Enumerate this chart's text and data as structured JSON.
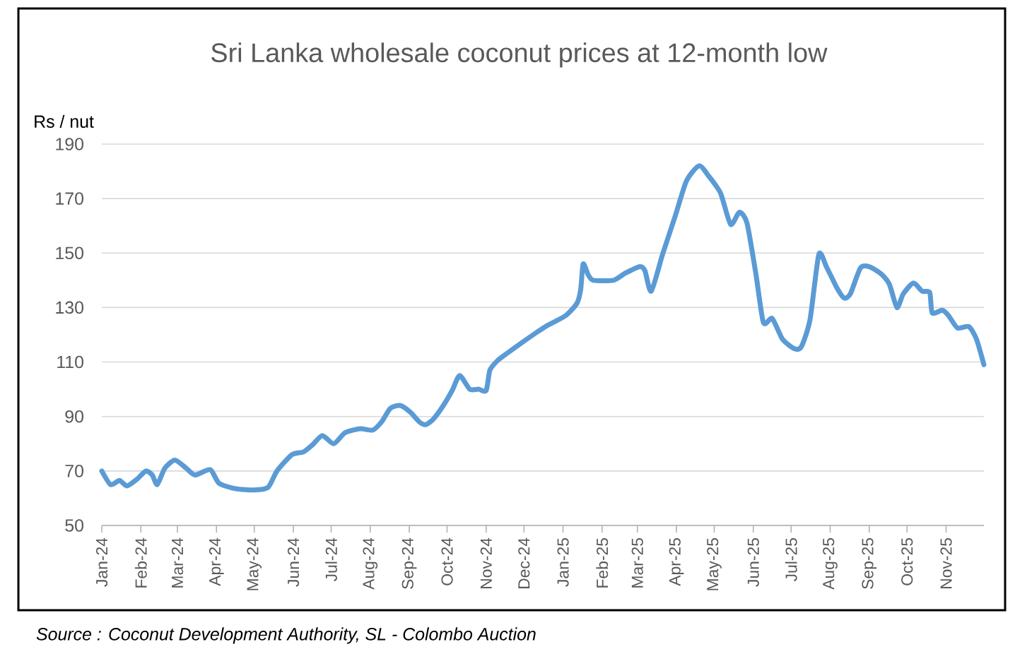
{
  "chart_data": {
    "type": "line",
    "title": "Sri Lanka wholesale coconut prices at 12-month low",
    "ylabel": "Rs / nut",
    "annotations": [
      "Source : Coconut Development Authority, SL - Colombo Auction"
    ],
    "x": [
      "2024-01-01",
      "2024-01-08",
      "2024-01-15",
      "2024-01-21",
      "2024-01-29",
      "2024-02-05",
      "2024-02-10",
      "2024-02-14",
      "2024-02-20",
      "2024-02-28",
      "2024-03-08",
      "2024-03-15",
      "2024-03-27",
      "2024-04-03",
      "2024-04-16",
      "2024-05-01",
      "2024-05-12",
      "2024-05-19",
      "2024-05-31",
      "2024-06-09",
      "2024-06-16",
      "2024-06-24",
      "2024-07-03",
      "2024-07-12",
      "2024-07-24",
      "2024-08-03",
      "2024-08-10",
      "2024-08-17",
      "2024-08-25",
      "2024-09-02",
      "2024-09-09",
      "2024-09-14",
      "2024-09-20",
      "2024-09-28",
      "2024-10-05",
      "2024-10-11",
      "2024-10-19",
      "2024-10-26",
      "2024-11-01",
      "2024-11-04",
      "2024-11-10",
      "2024-11-17",
      "2024-11-29",
      "2024-12-18",
      "2025-01-03",
      "2025-01-12",
      "2025-01-15",
      "2025-01-17",
      "2025-01-21",
      "2025-01-25",
      "2025-02-10",
      "2025-02-19",
      "2025-03-03",
      "2025-03-07",
      "2025-03-12",
      "2025-03-21",
      "2025-03-31",
      "2025-04-09",
      "2025-04-19",
      "2025-04-27",
      "2025-05-06",
      "2025-05-14",
      "2025-05-21",
      "2025-05-27",
      "2025-06-03",
      "2025-06-09",
      "2025-06-16",
      "2025-06-24",
      "2025-07-03",
      "2025-07-09",
      "2025-07-16",
      "2025-07-23",
      "2025-07-29",
      "2025-08-06",
      "2025-08-12",
      "2025-08-17",
      "2025-08-25",
      "2025-09-01",
      "2025-09-10",
      "2025-09-17",
      "2025-09-23",
      "2025-09-28",
      "2025-10-06",
      "2025-10-13",
      "2025-10-19",
      "2025-10-21",
      "2025-10-29",
      "2025-11-03",
      "2025-11-10",
      "2025-11-19",
      "2025-11-25",
      "2025-12-01"
    ],
    "values": [
      70,
      65,
      66.5,
      64.5,
      67,
      70,
      68.5,
      65,
      71,
      74,
      71,
      68.5,
      70.5,
      65.5,
      63.5,
      63,
      64,
      70,
      76,
      77,
      79.5,
      83,
      80,
      84,
      85.5,
      85,
      88,
      93,
      94,
      91.5,
      88,
      87,
      89,
      94,
      99.5,
      105,
      100,
      100,
      99.5,
      107,
      110.5,
      113,
      117,
      123,
      127,
      131.5,
      136.5,
      146,
      142,
      140,
      140,
      142.5,
      145,
      143.5,
      136,
      149.5,
      163.5,
      176.5,
      182,
      178,
      172,
      160.5,
      165,
      161,
      142.5,
      124.5,
      126,
      118.5,
      115,
      115.5,
      125.5,
      149.5,
      145,
      137.5,
      133.5,
      135,
      144.5,
      145,
      142.5,
      138.5,
      130,
      135,
      139,
      136,
      135.5,
      128,
      129,
      127,
      122.5,
      123,
      118.5,
      109
    ],
    "color": "#5b9bd5",
    "line_style": "solid",
    "grid": "y",
    "xlim": [
      "2024-01-01",
      "2025-12-01"
    ],
    "ylim": [
      50,
      190
    ],
    "yticks": [
      50,
      70,
      90,
      110,
      130,
      150,
      170,
      190
    ],
    "xticks": [
      {
        "value": "2024-01-01",
        "label": "Jan-24"
      },
      {
        "value": "2024-02-01",
        "label": "Feb-24"
      },
      {
        "value": "2024-03-01",
        "label": "Mar-24"
      },
      {
        "value": "2024-04-01",
        "label": "Apr-24"
      },
      {
        "value": "2024-05-01",
        "label": "May-24"
      },
      {
        "value": "2024-06-01",
        "label": "Jun-24"
      },
      {
        "value": "2024-07-01",
        "label": "Jul-24"
      },
      {
        "value": "2024-08-01",
        "label": "Aug-24"
      },
      {
        "value": "2024-09-01",
        "label": "Sep-24"
      },
      {
        "value": "2024-10-01",
        "label": "Oct-24"
      },
      {
        "value": "2024-11-01",
        "label": "Nov-24"
      },
      {
        "value": "2024-12-01",
        "label": "Dec-24"
      },
      {
        "value": "2025-01-01",
        "label": "Jan-25"
      },
      {
        "value": "2025-02-01",
        "label": "Feb-25"
      },
      {
        "value": "2025-03-01",
        "label": "Mar-25"
      },
      {
        "value": "2025-04-01",
        "label": "Apr-25"
      },
      {
        "value": "2025-05-01",
        "label": "May-25"
      },
      {
        "value": "2025-06-01",
        "label": "Jun-25"
      },
      {
        "value": "2025-07-01",
        "label": "Jul-25"
      },
      {
        "value": "2025-08-01",
        "label": "Aug-25"
      },
      {
        "value": "2025-09-01",
        "label": "Sep-25"
      },
      {
        "value": "2025-10-01",
        "label": "Oct-25"
      },
      {
        "value": "2025-11-01",
        "label": "Nov-25"
      }
    ]
  }
}
